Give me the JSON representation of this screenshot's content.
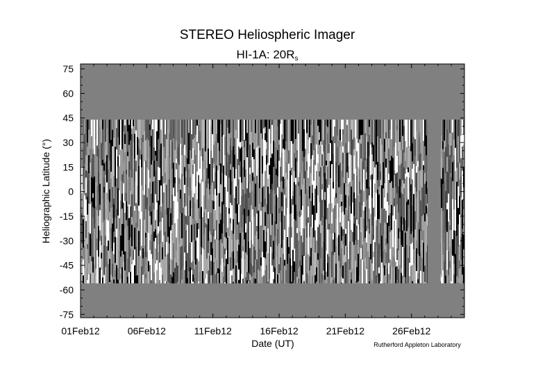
{
  "chart_data": {
    "type": "heatmap",
    "title": "STEREO Heliospheric Imager",
    "subtitle_main": "HI-1A: 20R",
    "subtitle_sub": "s",
    "xlabel": "Date (UT)",
    "ylabel": "Heliographic Latitude (°)",
    "credit": "Rutherford Appleton Laboratory",
    "x_tick_labels": [
      "01Feb12",
      "06Feb12",
      "11Feb12",
      "16Feb12",
      "21Feb12",
      "26Feb12"
    ],
    "x_tick_days": [
      0,
      5,
      10,
      15,
      20,
      25
    ],
    "xlim_days": [
      0,
      29
    ],
    "y_ticks": [
      75,
      60,
      45,
      30,
      15,
      0,
      -15,
      -30,
      -45,
      -60,
      -75
    ],
    "ylim": [
      -77,
      78
    ],
    "data_lat_range": [
      -56,
      44
    ],
    "data_gap_days": [
      [
        26.2,
        27.2
      ]
    ],
    "grid": false,
    "colors": {
      "fill": "#808080",
      "background": "#ffffff",
      "axis": "#000000"
    }
  }
}
